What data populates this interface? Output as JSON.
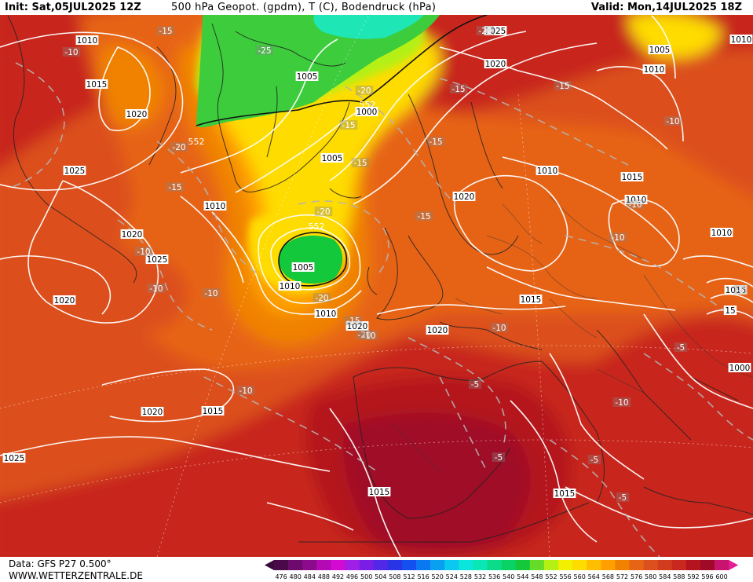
{
  "header": {
    "init": "Init: Sat,05JUL2025 12Z",
    "title": "500 hPa Geopot. (gpdm), T (C), Bodendruck (hPa)",
    "valid": "Valid: Mon,14JUL2025 18Z"
  },
  "footer": {
    "data_source": "Data: GFS P27 0.500°",
    "website": "WWW.WETTERZENTRALE.DE"
  },
  "legend": {
    "values": [
      "476",
      "480",
      "484",
      "488",
      "492",
      "496",
      "500",
      "504",
      "508",
      "512",
      "516",
      "520",
      "524",
      "528",
      "532",
      "536",
      "540",
      "544",
      "548",
      "552",
      "556",
      "560",
      "564",
      "568",
      "572",
      "576",
      "580",
      "584",
      "588",
      "592",
      "596",
      "600"
    ],
    "colors": [
      "#4a0a4a",
      "#6e0a6e",
      "#8c0a8c",
      "#b40ab4",
      "#d20ad2",
      "#a01ee6",
      "#7a1ee6",
      "#5028e6",
      "#2834e6",
      "#1450f0",
      "#0a78f0",
      "#0aa0f0",
      "#0ac8f0",
      "#0ae6dc",
      "#0ae6b4",
      "#0adc8c",
      "#0ad264",
      "#14c83c",
      "#64dc28",
      "#b4f014",
      "#f0f000",
      "#ffdc00",
      "#ffbe00",
      "#ffa000",
      "#f08200",
      "#e66414",
      "#dc501e",
      "#d23c1e",
      "#c8281e",
      "#b4141e",
      "#a00a28",
      "#c8146e"
    ]
  },
  "pressure_labels": [
    {
      "text": "1010"
    },
    {
      "text": "1015"
    },
    {
      "text": "1020"
    },
    {
      "text": "1025"
    },
    {
      "text": "1010"
    },
    {
      "text": "1020"
    },
    {
      "text": "1025"
    },
    {
      "text": "1020"
    },
    {
      "text": "1005"
    },
    {
      "text": "1000"
    },
    {
      "text": "1005"
    },
    {
      "text": "1010"
    },
    {
      "text": "1005"
    },
    {
      "text": "1010"
    },
    {
      "text": "1015"
    },
    {
      "text": "1020"
    },
    {
      "text": "1020"
    },
    {
      "text": "1020"
    },
    {
      "text": "1025"
    },
    {
      "text": "1025"
    },
    {
      "text": "1020"
    },
    {
      "text": "1020"
    },
    {
      "text": "1010"
    },
    {
      "text": "1015"
    },
    {
      "text": "1010"
    },
    {
      "text": "1015"
    },
    {
      "text": "1005"
    },
    {
      "text": "1010"
    },
    {
      "text": "1010"
    },
    {
      "text": "1015"
    },
    {
      "text": "1015"
    },
    {
      "text": "1010"
    },
    {
      "text": "1000"
    },
    {
      "text": "1015"
    },
    {
      "text": "15"
    }
  ],
  "temperature_labels": [
    {
      "text": "-15"
    },
    {
      "text": "-10"
    },
    {
      "text": "-20"
    },
    {
      "text": "-15"
    },
    {
      "text": "-25"
    },
    {
      "text": "-20"
    },
    {
      "text": "-15"
    },
    {
      "text": "-15"
    },
    {
      "text": "-20"
    },
    {
      "text": "-15"
    },
    {
      "text": "-15"
    },
    {
      "text": "-15"
    },
    {
      "text": "-15"
    },
    {
      "text": "-20"
    },
    {
      "text": "-10"
    },
    {
      "text": "-10"
    },
    {
      "text": "-10"
    },
    {
      "text": "-20"
    },
    {
      "text": "-15"
    },
    {
      "text": "-10"
    },
    {
      "text": "-10"
    },
    {
      "text": "-10"
    },
    {
      "text": "-10"
    },
    {
      "text": "-10"
    },
    {
      "text": "-10"
    },
    {
      "text": "-5"
    },
    {
      "text": "-5"
    },
    {
      "text": "-5"
    },
    {
      "text": "-5"
    },
    {
      "text": "-5"
    },
    {
      "text": "-10"
    },
    {
      "text": "-5"
    },
    {
      "text": "-20"
    }
  ],
  "geopotential_labels": [
    {
      "text": "552"
    },
    {
      "text": "552"
    },
    {
      "text": "552"
    },
    {
      "text": "-2"
    }
  ]
}
